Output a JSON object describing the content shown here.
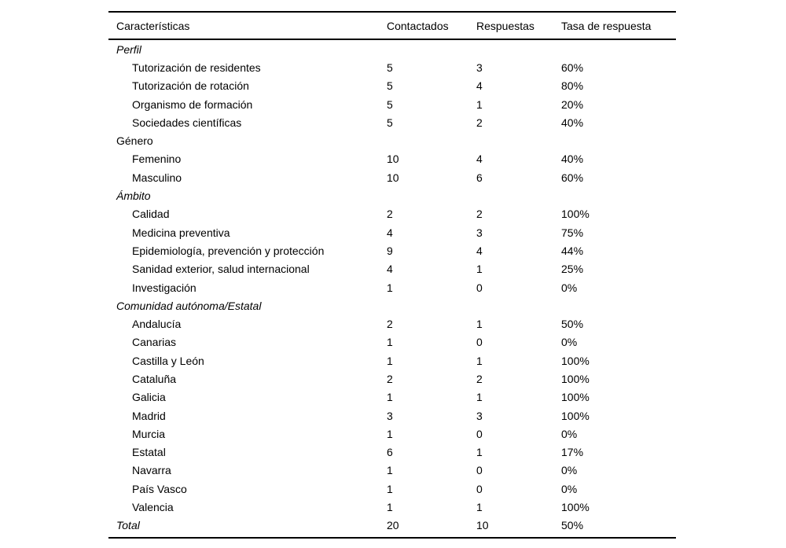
{
  "table": {
    "columns": [
      "Características",
      "Contactados",
      "Respuestas",
      "Tasa de respuesta"
    ],
    "rows": [
      {
        "label": "Perfil",
        "contactados": "",
        "respuestas": "",
        "tasa": "",
        "style": "section-italic"
      },
      {
        "label": "Tutorización de residentes",
        "contactados": "5",
        "respuestas": "3",
        "tasa": "60%",
        "style": "item"
      },
      {
        "label": "Tutorización de rotación",
        "contactados": "5",
        "respuestas": "4",
        "tasa": "80%",
        "style": "item"
      },
      {
        "label": "Organismo de formación",
        "contactados": "5",
        "respuestas": "1",
        "tasa": "20%",
        "style": "item"
      },
      {
        "label": "Sociedades científicas",
        "contactados": "5",
        "respuestas": "2",
        "tasa": "40%",
        "style": "item"
      },
      {
        "label": "Género",
        "contactados": "",
        "respuestas": "",
        "tasa": "",
        "style": "section-plain"
      },
      {
        "label": "Femenino",
        "contactados": "10",
        "respuestas": "4",
        "tasa": "40%",
        "style": "item"
      },
      {
        "label": "Masculino",
        "contactados": "10",
        "respuestas": "6",
        "tasa": "60%",
        "style": "item"
      },
      {
        "label": "Ámbito",
        "contactados": "",
        "respuestas": "",
        "tasa": "",
        "style": "section-italic"
      },
      {
        "label": "Calidad",
        "contactados": "2",
        "respuestas": "2",
        "tasa": "100%",
        "style": "item"
      },
      {
        "label": "Medicina preventiva",
        "contactados": "4",
        "respuestas": "3",
        "tasa": "75%",
        "style": "item"
      },
      {
        "label": "Epidemiología, prevención y protección",
        "contactados": "9",
        "respuestas": "4",
        "tasa": "44%",
        "style": "item"
      },
      {
        "label": "Sanidad exterior, salud internacional",
        "contactados": "4",
        "respuestas": "1",
        "tasa": "25%",
        "style": "item"
      },
      {
        "label": "Investigación",
        "contactados": "1",
        "respuestas": "0",
        "tasa": "0%",
        "style": "item"
      },
      {
        "label": "Comunidad autónoma/Estatal",
        "contactados": "",
        "respuestas": "",
        "tasa": "",
        "style": "section-italic"
      },
      {
        "label": "Andalucía",
        "contactados": "2",
        "respuestas": "1",
        "tasa": "50%",
        "style": "item"
      },
      {
        "label": "Canarias",
        "contactados": "1",
        "respuestas": "0",
        "tasa": "0%",
        "style": "item"
      },
      {
        "label": "Castilla y León",
        "contactados": "1",
        "respuestas": "1",
        "tasa": "100%",
        "style": "item"
      },
      {
        "label": "Cataluña",
        "contactados": "2",
        "respuestas": "2",
        "tasa": "100%",
        "style": "item"
      },
      {
        "label": "Galicia",
        "contactados": "1",
        "respuestas": "1",
        "tasa": "100%",
        "style": "item"
      },
      {
        "label": "Madrid",
        "contactados": "3",
        "respuestas": "3",
        "tasa": "100%",
        "style": "item"
      },
      {
        "label": "Murcia",
        "contactados": "1",
        "respuestas": "0",
        "tasa": "0%",
        "style": "item"
      },
      {
        "label": "Estatal",
        "contactados": "6",
        "respuestas": "1",
        "tasa": "17%",
        "style": "item"
      },
      {
        "label": "Navarra",
        "contactados": "1",
        "respuestas": "0",
        "tasa": "0%",
        "style": "item"
      },
      {
        "label": "País Vasco",
        "contactados": "1",
        "respuestas": "0",
        "tasa": "0%",
        "style": "item"
      },
      {
        "label": "Valencia",
        "contactados": "1",
        "respuestas": "1",
        "tasa": "100%",
        "style": "item"
      },
      {
        "label": "Total",
        "contactados": "20",
        "respuestas": "10",
        "tasa": "50%",
        "style": "total"
      }
    ]
  },
  "chart_data": {
    "type": "table",
    "columns": [
      "Características",
      "Contactados",
      "Respuestas",
      "Tasa de respuesta"
    ],
    "sections": [
      {
        "name": "Perfil",
        "rows": [
          [
            "Tutorización de residentes",
            5,
            3,
            "60%"
          ],
          [
            "Tutorización de rotación",
            5,
            4,
            "80%"
          ],
          [
            "Organismo de formación",
            5,
            1,
            "20%"
          ],
          [
            "Sociedades científicas",
            5,
            2,
            "40%"
          ]
        ]
      },
      {
        "name": "Género",
        "rows": [
          [
            "Femenino",
            10,
            4,
            "40%"
          ],
          [
            "Masculino",
            10,
            6,
            "60%"
          ]
        ]
      },
      {
        "name": "Ámbito",
        "rows": [
          [
            "Calidad",
            2,
            2,
            "100%"
          ],
          [
            "Medicina preventiva",
            4,
            3,
            "75%"
          ],
          [
            "Epidemiología, prevención y protección",
            9,
            4,
            "44%"
          ],
          [
            "Sanidad exterior, salud internacional",
            4,
            1,
            "25%"
          ],
          [
            "Investigación",
            1,
            0,
            "0%"
          ]
        ]
      },
      {
        "name": "Comunidad autónoma/Estatal",
        "rows": [
          [
            "Andalucía",
            2,
            1,
            "50%"
          ],
          [
            "Canarias",
            1,
            0,
            "0%"
          ],
          [
            "Castilla y León",
            1,
            1,
            "100%"
          ],
          [
            "Cataluña",
            2,
            2,
            "100%"
          ],
          [
            "Galicia",
            1,
            1,
            "100%"
          ],
          [
            "Madrid",
            3,
            3,
            "100%"
          ],
          [
            "Murcia",
            1,
            0,
            "0%"
          ],
          [
            "Estatal",
            6,
            1,
            "17%"
          ],
          [
            "Navarra",
            1,
            0,
            "0%"
          ],
          [
            "País Vasco",
            1,
            0,
            "0%"
          ],
          [
            "Valencia",
            1,
            1,
            "100%"
          ]
        ]
      }
    ],
    "total_row": [
      "Total",
      20,
      10,
      "50%"
    ]
  }
}
